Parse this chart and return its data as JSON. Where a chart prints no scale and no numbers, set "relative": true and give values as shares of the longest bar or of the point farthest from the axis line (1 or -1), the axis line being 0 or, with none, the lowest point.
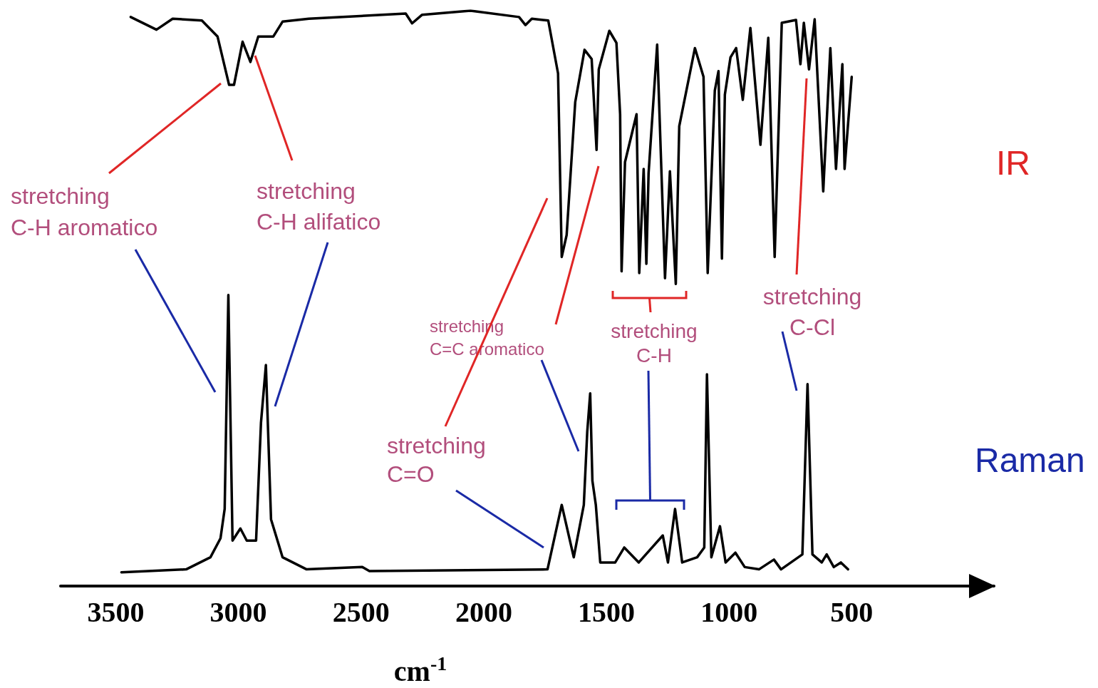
{
  "chart_data": {
    "type": "line",
    "relative": true,
    "xlabel": "cm$^{-1}$",
    "xlim": [
      3725,
      -80
    ],
    "xticks": [
      3500,
      3000,
      2500,
      2000,
      1500,
      1000,
      500
    ],
    "annotations": [
      "stretching\nC-H aromatico",
      "stretching\nC-H alifatico",
      "stretching\nC=C aromatico",
      "stretching\nC=O",
      "stretching\nC-H",
      "stretching\nC-Cl"
    ],
    "series": [
      {
        "name": "IR",
        "color": "#000000",
        "x": [
          3439,
          3334,
          3268,
          3149,
          3085,
          3038,
          3018,
          2983,
          2951,
          2919,
          2858,
          2820,
          2713,
          2318,
          2292,
          2251,
          2054,
          1856,
          1830,
          1804,
          1737,
          1697,
          1682,
          1662,
          1627,
          1589,
          1560,
          1540,
          1531,
          1488,
          1459,
          1444,
          1438,
          1424,
          1377,
          1366,
          1348,
          1337,
          1328,
          1293,
          1261,
          1241,
          1217,
          1203,
          1139,
          1104,
          1087,
          1058,
          1043,
          1029,
          1017,
          994,
          971,
          944,
          913,
          872,
          840,
          814,
          785,
          727,
          709,
          695,
          674,
          651,
          616,
          587,
          564,
          538,
          529,
          500
        ],
        "values": [
          0.989,
          0.967,
          0.986,
          0.983,
          0.955,
          0.871,
          0.871,
          0.946,
          0.911,
          0.955,
          0.955,
          0.981,
          0.986,
          0.995,
          0.978,
          0.993,
          1.0,
          0.989,
          0.975,
          0.986,
          0.983,
          0.891,
          0.572,
          0.61,
          0.841,
          0.932,
          0.916,
          0.758,
          0.898,
          0.965,
          0.944,
          0.82,
          0.547,
          0.737,
          0.82,
          0.544,
          0.725,
          0.56,
          0.717,
          0.941,
          0.535,
          0.721,
          0.525,
          0.799,
          0.935,
          0.885,
          0.544,
          0.861,
          0.895,
          0.569,
          0.854,
          0.919,
          0.935,
          0.845,
          0.97,
          0.767,
          0.953,
          0.572,
          0.979,
          0.984,
          0.907,
          0.979,
          0.898,
          0.985,
          0.686,
          0.935,
          0.725,
          0.907,
          0.725,
          0.885
        ]
      },
      {
        "name": "Raman",
        "color": "#000000",
        "x": [
          3477,
          3213,
          3114,
          3073,
          3056,
          3041,
          3024,
          2992,
          2966,
          2928,
          2908,
          2888,
          2867,
          2820,
          2722,
          2495,
          2466,
          1740,
          1682,
          1633,
          1592,
          1578,
          1566,
          1557,
          1543,
          1525,
          1464,
          1427,
          1368,
          1270,
          1249,
          1220,
          1191,
          1130,
          1101,
          1090,
          1072,
          1037,
          1014,
          974,
          936,
          878,
          817,
          788,
          701,
          680,
          660,
          622,
          602,
          573,
          544,
          515
        ],
        "values": [
          0.024,
          0.029,
          0.05,
          0.083,
          0.134,
          0.506,
          0.079,
          0.1,
          0.079,
          0.079,
          0.284,
          0.384,
          0.116,
          0.05,
          0.029,
          0.033,
          0.026,
          0.029,
          0.141,
          0.05,
          0.141,
          0.268,
          0.335,
          0.183,
          0.141,
          0.041,
          0.041,
          0.067,
          0.041,
          0.088,
          0.041,
          0.134,
          0.041,
          0.05,
          0.067,
          0.368,
          0.05,
          0.104,
          0.041,
          0.058,
          0.033,
          0.029,
          0.046,
          0.029,
          0.055,
          0.351,
          0.055,
          0.041,
          0.055,
          0.033,
          0.041,
          0.029
        ]
      }
    ]
  }
}
